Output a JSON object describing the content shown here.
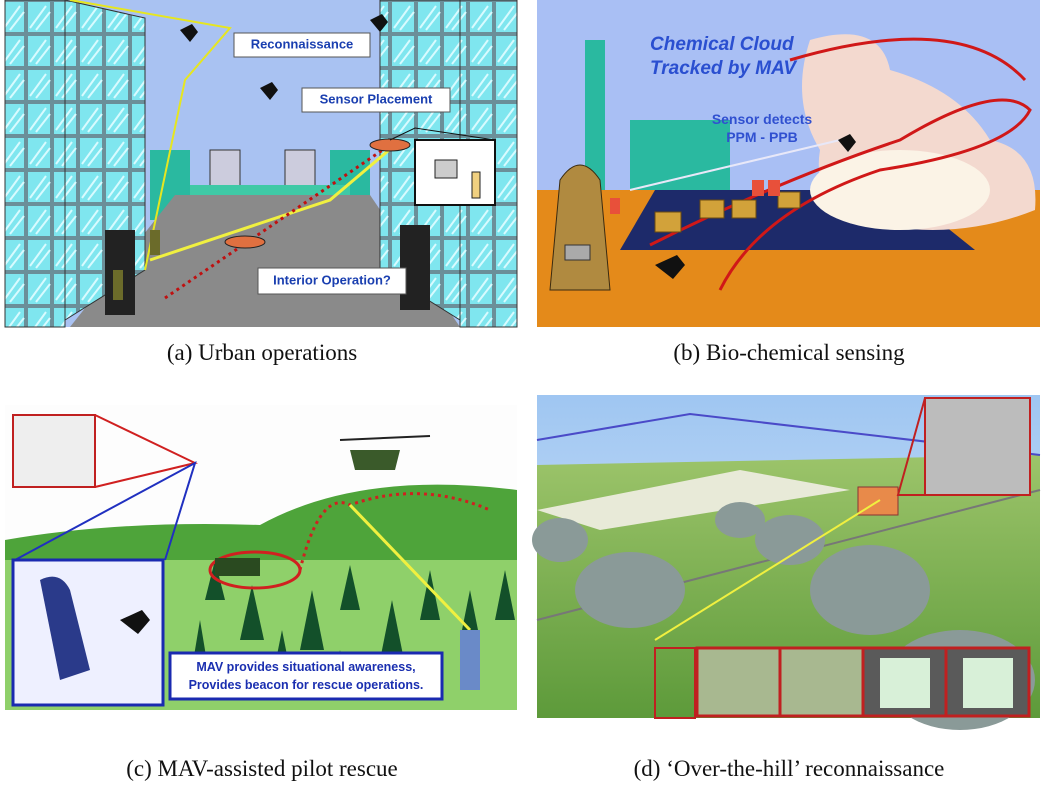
{
  "panels": [
    {
      "caption": "(a) Urban operations",
      "labels": [
        "Reconnaissance",
        "Sensor Placement",
        "Interior Operation?"
      ]
    },
    {
      "caption": "(b) Bio-chemical sensing",
      "labels": [
        "Chemical Cloud",
        "Tracked by MAV",
        "Sensor detects",
        "PPM - PPB"
      ]
    },
    {
      "caption": "(c) MAV-assisted pilot rescue",
      "labels": [
        "MAV provides situational awareness,",
        "Provides beacon for rescue operations."
      ]
    },
    {
      "caption": "(d) ‘Over-the-hill’ reconnaissance",
      "labels": []
    }
  ]
}
